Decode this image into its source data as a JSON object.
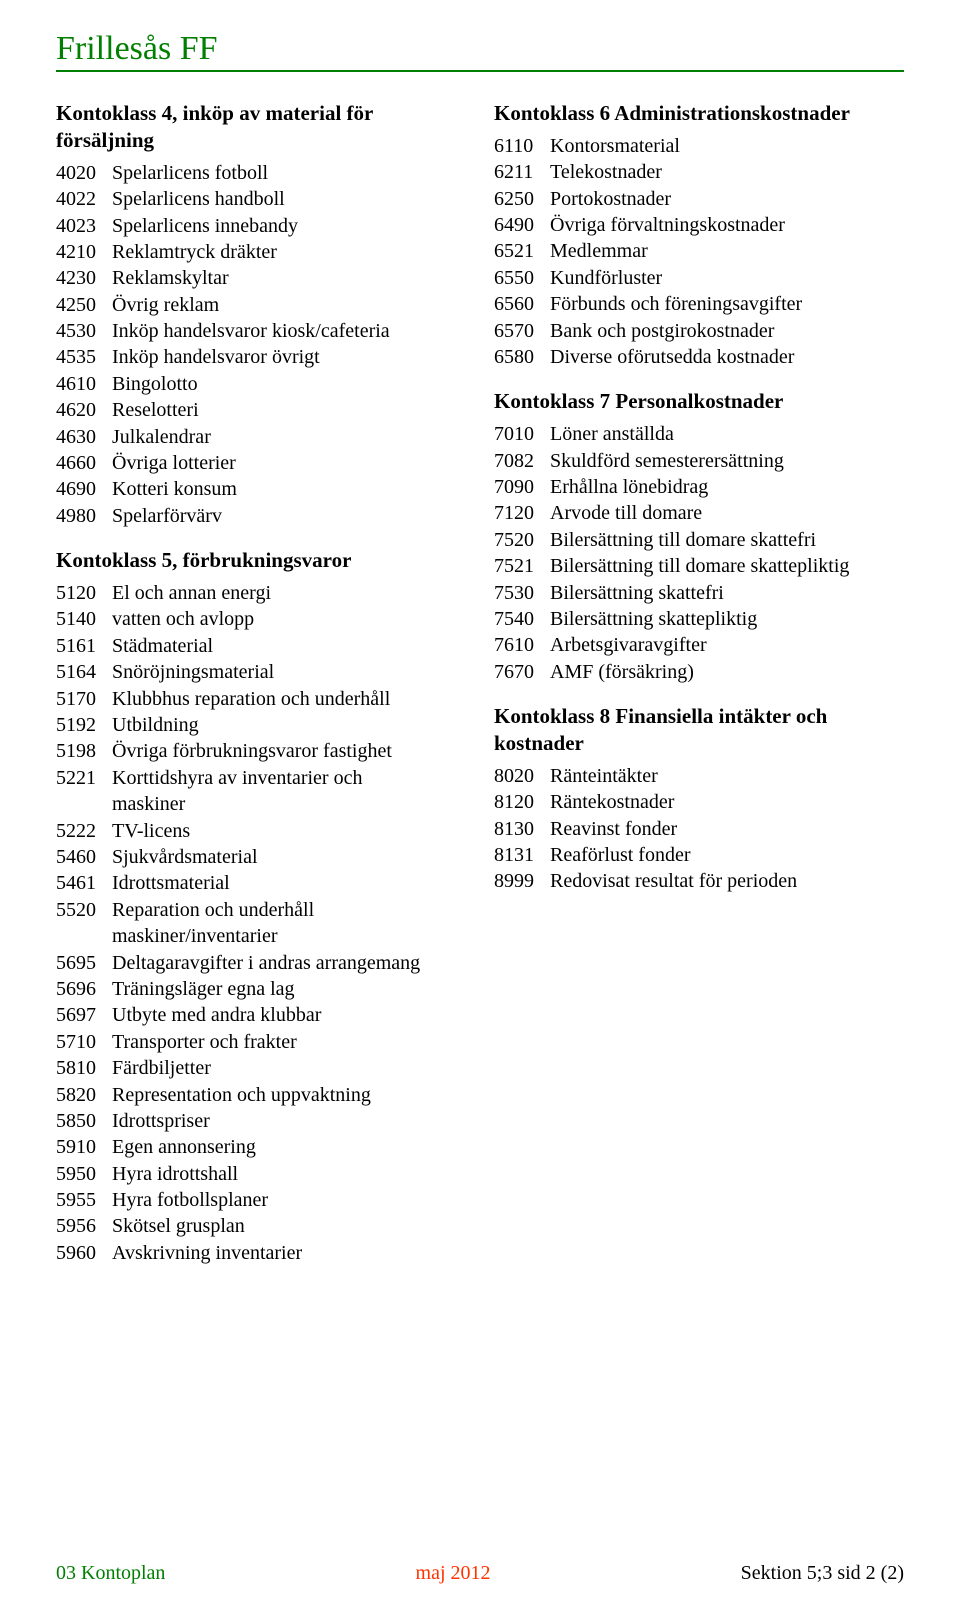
{
  "title": "Frillesås FF",
  "colors": {
    "accent": "#007f00",
    "footerMid": "#ff3300",
    "text": "#000000",
    "background": "#ffffff"
  },
  "typography": {
    "family": "Times New Roman",
    "title_size": 34,
    "heading_size": 21,
    "body_size": 20
  },
  "left": {
    "sec4": {
      "heading_l1": "Kontoklass 4, inköp av material för",
      "heading_l2": "försäljning",
      "items": [
        {
          "code": "4020",
          "desc": "Spelarlicens fotboll"
        },
        {
          "code": "4022",
          "desc": "Spelarlicens handboll"
        },
        {
          "code": "4023",
          "desc": "Spelarlicens innebandy"
        },
        {
          "code": "4210",
          "desc": "Reklamtryck dräkter"
        },
        {
          "code": "4230",
          "desc": "Reklamskyltar"
        },
        {
          "code": "4250",
          "desc": "Övrig reklam"
        },
        {
          "code": "4530",
          "desc": "Inköp handelsvaror kiosk/cafeteria"
        },
        {
          "code": "4535",
          "desc": "Inköp handelsvaror övrigt"
        },
        {
          "code": "4610",
          "desc": "Bingolotto"
        },
        {
          "code": "4620",
          "desc": "Reselotteri"
        },
        {
          "code": "4630",
          "desc": "Julkalendrar"
        },
        {
          "code": "4660",
          "desc": "Övriga lotterier"
        },
        {
          "code": "4690",
          "desc": "Kotteri konsum"
        },
        {
          "code": "4980",
          "desc": "Spelarförvärv"
        }
      ]
    },
    "sec5": {
      "heading": "Kontoklass 5, förbrukningsvaror",
      "items": [
        {
          "code": "5120",
          "desc": "El och annan energi"
        },
        {
          "code": "5140",
          "desc": "vatten och avlopp"
        },
        {
          "code": "5161",
          "desc": "Städmaterial"
        },
        {
          "code": "5164",
          "desc": "Snöröjningsmaterial"
        },
        {
          "code": "5170",
          "desc": "Klubbhus reparation och underhåll"
        },
        {
          "code": "5192",
          "desc": "Utbildning"
        },
        {
          "code": "5198",
          "desc": "Övriga förbrukningsvaror fastighet"
        },
        {
          "code": "5221",
          "desc": "Korttidshyra av inventarier och",
          "cont": "maskiner"
        },
        {
          "code": "5222",
          "desc": "TV-licens"
        },
        {
          "code": "5460",
          "desc": "Sjukvårdsmaterial"
        },
        {
          "code": "5461",
          "desc": "Idrottsmaterial"
        },
        {
          "code": "5520",
          "desc": "Reparation och underhåll",
          "cont": "maskiner/inventarier"
        },
        {
          "code": "5695",
          "desc": "Deltagaravgifter i andras arrangemang"
        },
        {
          "code": "5696",
          "desc": "Träningsläger egna lag"
        },
        {
          "code": "5697",
          "desc": "Utbyte med andra klubbar"
        },
        {
          "code": "5710",
          "desc": "Transporter och frakter"
        },
        {
          "code": "5810",
          "desc": "Färdbiljetter"
        },
        {
          "code": "5820",
          "desc": "Representation och uppvaktning"
        },
        {
          "code": "5850",
          "desc": "Idrottspriser"
        },
        {
          "code": "5910",
          "desc": "Egen annonsering"
        },
        {
          "code": "5950",
          "desc": "Hyra idrottshall"
        },
        {
          "code": "5955",
          "desc": "Hyra fotbollsplaner"
        },
        {
          "code": "5956",
          "desc": "Skötsel grusplan"
        },
        {
          "code": "5960",
          "desc": "Avskrivning inventarier"
        }
      ]
    }
  },
  "right": {
    "sec6": {
      "heading": "Kontoklass 6 Administrationskostnader",
      "items": [
        {
          "code": "6110",
          "desc": "Kontorsmaterial"
        },
        {
          "code": "6211",
          "desc": "Telekostnader"
        },
        {
          "code": "6250",
          "desc": "Portokostnader"
        },
        {
          "code": "6490",
          "desc": "Övriga förvaltningskostnader"
        },
        {
          "code": "6521",
          "desc": "Medlemmar"
        },
        {
          "code": "6550",
          "desc": "Kundförluster"
        },
        {
          "code": "6560",
          "desc": "Förbunds och föreningsavgifter"
        },
        {
          "code": "6570",
          "desc": "Bank och postgirokostnader"
        },
        {
          "code": "6580",
          "desc": "Diverse oförutsedda kostnader"
        }
      ]
    },
    "sec7": {
      "heading": "Kontoklass 7 Personalkostnader",
      "items": [
        {
          "code": "7010",
          "desc": "Löner anställda"
        },
        {
          "code": "7082",
          "desc": "Skuldförd semesterersättning"
        },
        {
          "code": "7090",
          "desc": "Erhållna lönebidrag"
        },
        {
          "code": "7120",
          "desc": "Arvode till domare"
        },
        {
          "code": "7520",
          "desc": "Bilersättning till domare skattefri"
        },
        {
          "code": "7521",
          "desc": "Bilersättning till domare skattepliktig"
        },
        {
          "code": "7530",
          "desc": "Bilersättning skattefri"
        },
        {
          "code": "7540",
          "desc": "Bilersättning skattepliktig"
        },
        {
          "code": "7610",
          "desc": "Arbetsgivaravgifter"
        },
        {
          "code": "7670",
          "desc": "AMF (försäkring)"
        }
      ]
    },
    "sec8": {
      "heading_l1": "Kontoklass 8 Finansiella intäkter och",
      "heading_l2": "kostnader",
      "items": [
        {
          "code": "8020",
          "desc": "Ränteintäkter"
        },
        {
          "code": "8120",
          "desc": "Räntekostnader"
        },
        {
          "code": "8130",
          "desc": "Reavinst fonder"
        },
        {
          "code": "8131",
          "desc": "Reaförlust fonder"
        },
        {
          "code": "8999",
          "desc": "Redovisat resultat för perioden"
        }
      ]
    }
  },
  "footer": {
    "left": "03 Kontoplan",
    "mid": "maj 2012",
    "right": "Sektion 5;3 sid 2 (2)"
  }
}
